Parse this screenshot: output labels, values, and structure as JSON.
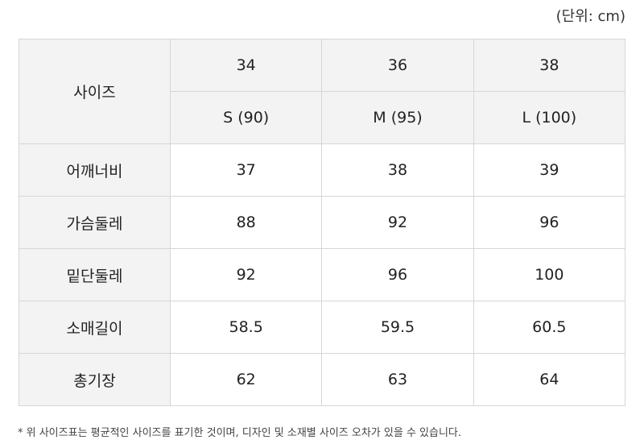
{
  "unit_label": "(단위: cm)",
  "table": {
    "header_label": "사이즈",
    "sizes": [
      "34",
      "36",
      "38"
    ],
    "size_codes": [
      "S (90)",
      "M (95)",
      "L (100)"
    ],
    "rows": [
      {
        "label": "어깨너비",
        "values": [
          "37",
          "38",
          "39"
        ]
      },
      {
        "label": "가슴둘레",
        "values": [
          "88",
          "92",
          "96"
        ]
      },
      {
        "label": "밑단둘레",
        "values": [
          "92",
          "96",
          "100"
        ]
      },
      {
        "label": "소매길이",
        "values": [
          "58.5",
          "59.5",
          "60.5"
        ]
      },
      {
        "label": "총기장",
        "values": [
          "62",
          "63",
          "64"
        ]
      }
    ]
  },
  "note": "* 위 사이즈표는 평균적인 사이즈를 표기한 것이며, 디자인 및 소재별 사이즈 오차가 있을 수 있습니다."
}
